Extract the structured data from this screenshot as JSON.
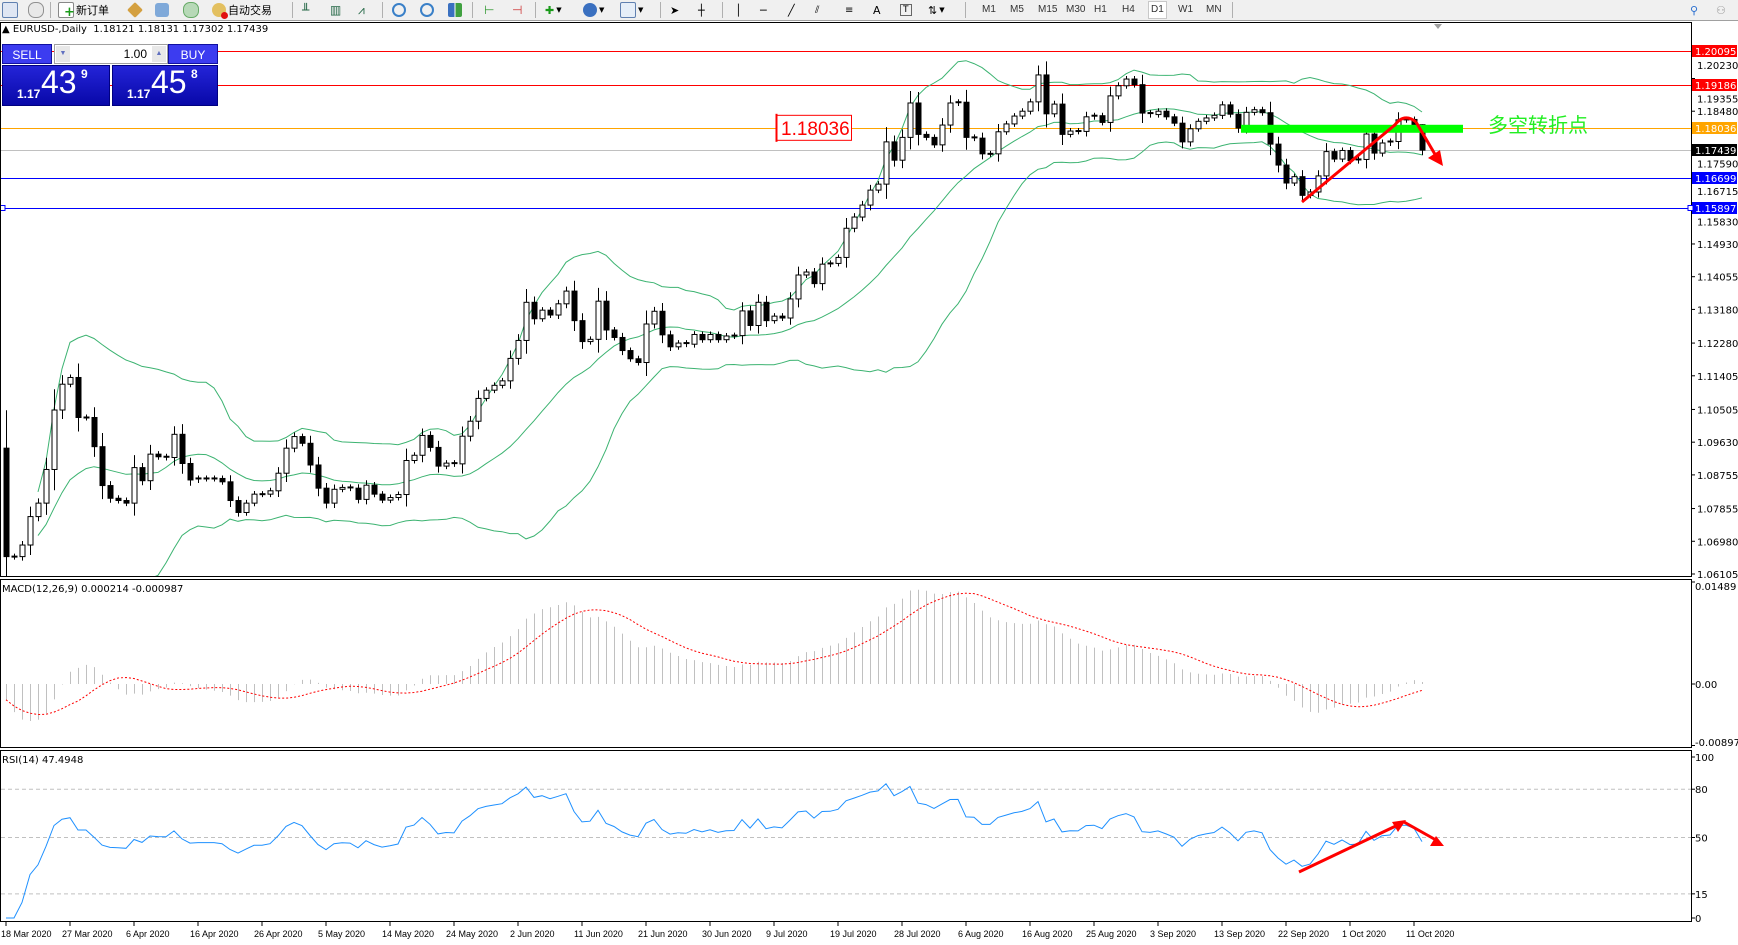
{
  "toolbar": {
    "icons": [
      "chart-list-icon",
      "zoom-chart-icon",
      "new-order-icon",
      "history-icon",
      "data-window-icon",
      "signal-icon",
      "autotrade-icon",
      "bar-chart-icon",
      "candlestick-icon",
      "line-chart-icon",
      "zoom-in-icon",
      "zoom-out-icon",
      "tile-windows-icon",
      "auto-scroll-icon",
      "chart-shift-icon",
      "indicators-icon",
      "periods-icon",
      "templates-icon",
      "cursor-icon",
      "crosshair-icon",
      "vertical-line-icon",
      "horizontal-line-icon",
      "trendline-icon",
      "equidistant-channel-icon",
      "fibonacci-icon",
      "text-icon",
      "text-label-icon",
      "arrows-icon"
    ],
    "new_order_label": "新订单",
    "autotrade_label": "自动交易",
    "timeframes": [
      "M1",
      "M5",
      "M15",
      "M30",
      "H1",
      "H4",
      "D1",
      "W1",
      "MN"
    ],
    "active_timeframe": "D1",
    "right_icons": [
      "search-icon",
      "community-icon"
    ]
  },
  "chart": {
    "header_symbol": "EURUSD-,Daily",
    "header_ohlc": "1.18121 1.18131 1.17302 1.17439"
  },
  "trade_panel": {
    "sell_label": "SELL",
    "buy_label": "BUY",
    "lot": "1.00",
    "sell_prefix": "1.17",
    "sell_main": "43",
    "sell_sup": "9",
    "buy_prefix": "1.17",
    "buy_main": "45",
    "buy_sup": "8"
  },
  "annotations": {
    "price_label": "1.18036",
    "note_text": "多空转折点",
    "note_color": "#22ee22",
    "arrow_color": "#ff0000"
  },
  "chart_data": {
    "type": "candlestick",
    "symbol": "EURUSD",
    "timeframe": "Daily",
    "open_first": 1.0947,
    "close": [
      1.0657,
      1.0657,
      1.0688,
      1.0764,
      1.08,
      1.089,
      1.1049,
      1.1118,
      1.1136,
      1.1029,
      1.1029,
      1.0951,
      1.0847,
      1.0813,
      1.0807,
      1.08,
      1.0895,
      1.086,
      1.0931,
      1.0924,
      1.0922,
      1.0984,
      1.0906,
      1.0862,
      1.0866,
      1.0866,
      1.0866,
      1.0857,
      1.0807,
      1.0775,
      1.08,
      1.0824,
      1.0824,
      1.0833,
      1.088,
      1.0947,
      1.0978,
      1.096,
      1.0902,
      1.084,
      1.08,
      1.0837,
      1.0842,
      1.084,
      1.081,
      1.0848,
      1.0824,
      1.0808,
      1.0815,
      1.0823,
      1.0914,
      1.0928,
      1.0981,
      1.0949,
      1.0899,
      1.0907,
      1.0905,
      1.0979,
      1.1019,
      1.108,
      1.1102,
      1.1115,
      1.1127,
      1.1187,
      1.1235,
      1.1337,
      1.1293,
      1.1316,
      1.1303,
      1.1333,
      1.1367,
      1.1288,
      1.1232,
      1.1238,
      1.134,
      1.1263,
      1.1243,
      1.1208,
      1.1186,
      1.1176,
      1.1279,
      1.1313,
      1.125,
      1.1218,
      1.1228,
      1.1225,
      1.1251,
      1.1237,
      1.1251,
      1.1237,
      1.1247,
      1.1248,
      1.1314,
      1.1275,
      1.1337,
      1.1288,
      1.13,
      1.1295,
      1.1346,
      1.141,
      1.1418,
      1.1387,
      1.1439,
      1.1441,
      1.1457,
      1.1535,
      1.1565,
      1.1597,
      1.1637,
      1.1653,
      1.1766,
      1.1717,
      1.1778,
      1.187,
      1.1786,
      1.1778,
      1.1758,
      1.1811,
      1.187,
      1.1872,
      1.1778,
      1.1776,
      1.1734,
      1.1734,
      1.1793,
      1.1814,
      1.1835,
      1.1848,
      1.1873,
      1.1945,
      1.1841,
      1.1867,
      1.1786,
      1.1795,
      1.1794,
      1.1833,
      1.1836,
      1.1818,
      1.1889,
      1.1916,
      1.1934,
      1.1919,
      1.1843,
      1.1839,
      1.1848,
      1.1833,
      1.1816,
      1.1766,
      1.1801,
      1.1821,
      1.183,
      1.1837,
      1.1865,
      1.184,
      1.1803,
      1.1845,
      1.1852,
      1.1844,
      1.176,
      1.1704,
      1.1656,
      1.1673,
      1.1623,
      1.1632,
      1.1675,
      1.174,
      1.172,
      1.1743,
      1.1716,
      1.1719,
      1.1787,
      1.1736,
      1.1763,
      1.1767,
      1.1825,
      1.1826,
      1.1812,
      1.17439
    ],
    "last_bar": {
      "open": 1.18121,
      "high": 1.18131,
      "low": 1.17302,
      "close": 1.17439
    },
    "date_labels": [
      "18 Mar 2020",
      "27 Mar 2020",
      "6 Apr 2020",
      "16 Apr 2020",
      "26 Apr 2020",
      "5 May 2020",
      "14 May 2020",
      "24 May 2020",
      "2 Jun 2020",
      "11 Jun 2020",
      "21 Jun 2020",
      "30 Jun 2020",
      "9 Jul 2020",
      "19 Jul 2020",
      "28 Jul 2020",
      "6 Aug 2020",
      "16 Aug 2020",
      "25 Aug 2020",
      "3 Sep 2020",
      "13 Sep 2020",
      "22 Sep 2020",
      "1 Oct 2020",
      "11 Oct 2020"
    ],
    "date_label_every_bars": 8,
    "price_ticks": [
      "1.20230",
      "1.19355",
      "1.18480",
      "1.17590",
      "1.16715",
      "1.15830",
      "1.14930",
      "1.14055",
      "1.13180",
      "1.12280",
      "1.11405",
      "1.10505",
      "1.09630",
      "1.08755",
      "1.07855",
      "1.06980",
      "1.06105"
    ],
    "price_range": [
      1.06105,
      1.2087
    ],
    "horizontal_lines": [
      {
        "price": "1.20095",
        "color": "#ff0000",
        "tag_text": "#ffffff"
      },
      {
        "price": "1.19186",
        "color": "#ff0000",
        "tag_text": "#ffffff"
      },
      {
        "price": "1.18036",
        "color": "#ffa500",
        "tag_text": "#ffffff"
      },
      {
        "price": "1.17439",
        "color": "#c0c0c0",
        "tag_bg": "#000000",
        "tag_text": "#ffffff"
      },
      {
        "price": "1.16699",
        "color": "#0000ff",
        "tag_text": "#ffffff"
      },
      {
        "price": "1.15897",
        "color": "#0000ff",
        "tag_text": "#ffffff"
      }
    ],
    "bollinger": {
      "period": 20,
      "deviation": 2,
      "color": "#3cb371"
    },
    "macd": {
      "label": "MACD(12,26,9) 0.000214 -0.000987",
      "fast": 12,
      "slow": 26,
      "signal": 9,
      "ticks": [
        "0.01489",
        "0.00",
        "-0.008977"
      ],
      "range": [
        -0.008977,
        0.01489
      ],
      "histogram_color": "#c0c0c0",
      "signal_color": "#ff0000"
    },
    "rsi": {
      "label": "RSI(14) 47.4948",
      "period": 14,
      "ticks": [
        "100",
        "80",
        "50",
        "15",
        "0"
      ],
      "levels": [
        80,
        50,
        15
      ],
      "range": [
        0,
        100
      ],
      "color": "#1e90ff"
    }
  }
}
